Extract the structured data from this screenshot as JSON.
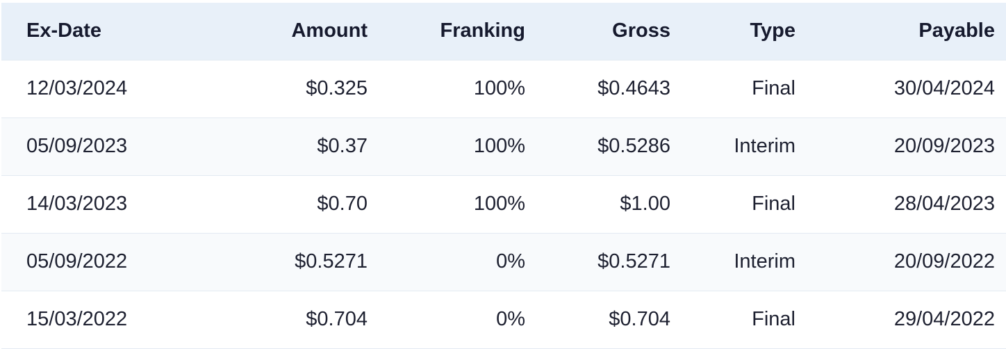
{
  "table": {
    "headers": {
      "ex_date": "Ex-Date",
      "amount": "Amount",
      "franking": "Franking",
      "gross": "Gross",
      "type": "Type",
      "payable": "Payable"
    },
    "rows": [
      {
        "ex_date": "12/03/2024",
        "amount": "$0.325",
        "franking": "100%",
        "gross": "$0.4643",
        "type": "Final",
        "payable": "30/04/2024"
      },
      {
        "ex_date": "05/09/2023",
        "amount": "$0.37",
        "franking": "100%",
        "gross": "$0.5286",
        "type": "Interim",
        "payable": "20/09/2023"
      },
      {
        "ex_date": "14/03/2023",
        "amount": "$0.70",
        "franking": "100%",
        "gross": "$1.00",
        "type": "Final",
        "payable": "28/04/2023"
      },
      {
        "ex_date": "05/09/2022",
        "amount": "$0.5271",
        "franking": "0%",
        "gross": "$0.5271",
        "type": "Interim",
        "payable": "20/09/2022"
      },
      {
        "ex_date": "15/03/2022",
        "amount": "$0.704",
        "franking": "0%",
        "gross": "$0.704",
        "type": "Final",
        "payable": "29/04/2022"
      }
    ]
  },
  "colors": {
    "header_bg": "#e8f0f9",
    "alt_row_bg": "#f8fafc",
    "row_border": "#e3eaf2",
    "text": "#1d2030"
  }
}
